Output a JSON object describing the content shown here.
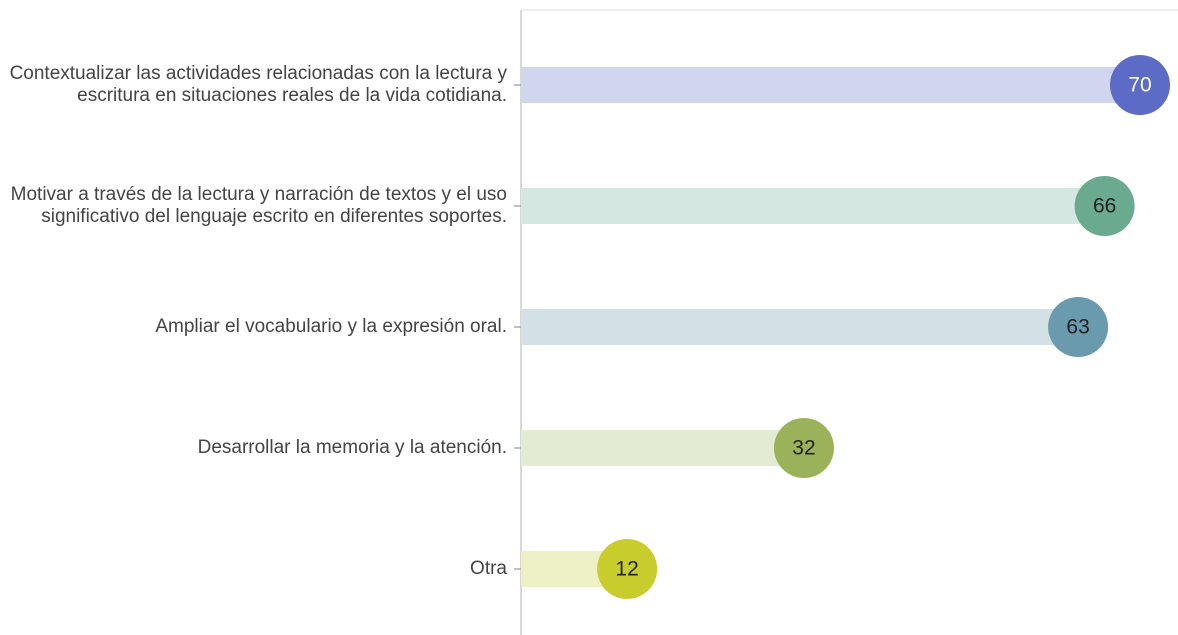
{
  "chart_data": {
    "type": "lollipop",
    "categories": [
      "Contextualizar las actividades relacionadas con la lectura y escritura en situaciones reales de la vida cotidiana.",
      "Motivar a través de la lectura y narración de textos y el uso significativo del lenguaje escrito en diferentes soportes.",
      "Ampliar el vocabulario y la expresión oral.",
      "Desarrollar la memoria y la atención.",
      "Otra"
    ],
    "values": [
      70,
      66,
      63,
      32,
      12
    ],
    "colors": [
      "#5b6bc6",
      "#6aaa8f",
      "#6a9aad",
      "#9ab35a",
      "#c9cc2d"
    ],
    "bar_colors": [
      "#d0d6ee",
      "#d5e7e1",
      "#d3e0e6",
      "#e3ebd3",
      "#eef0c5"
    ]
  }
}
